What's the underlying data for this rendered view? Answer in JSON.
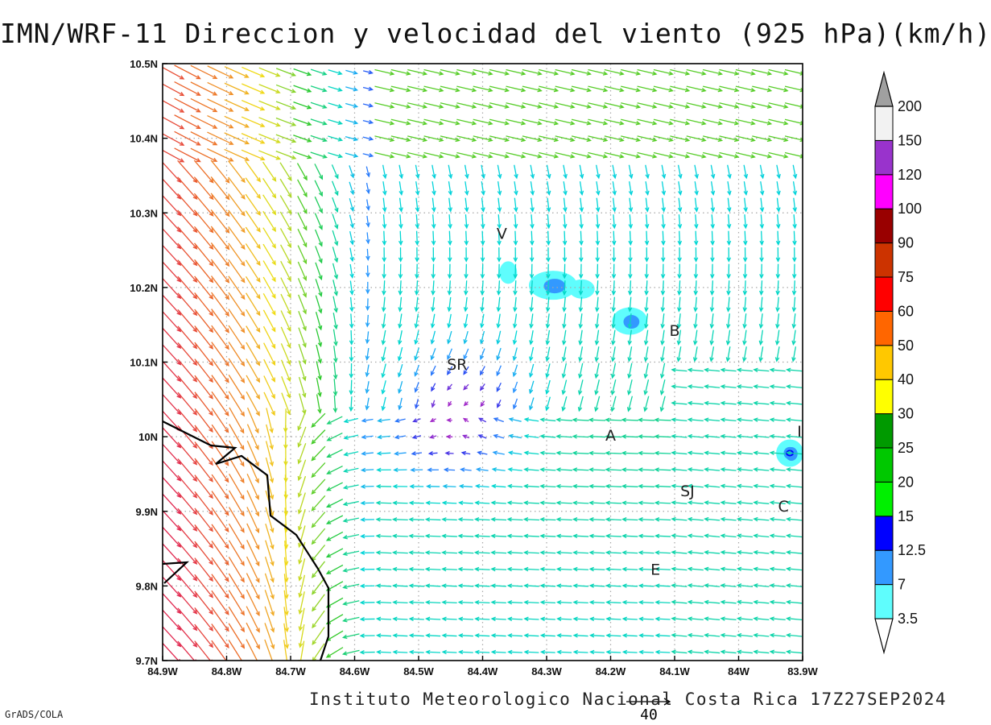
{
  "chart_data": {
    "type": "vector-field",
    "title": "IMN/WRF-11 Direccion y velocidad del viento (925 hPa)(km/h)",
    "x_ticks": [
      "84.9W",
      "84.8W",
      "84.7W",
      "84.6W",
      "84.5W",
      "84.4W",
      "84.3W",
      "84.2W",
      "84.1W",
      "84W",
      "83.9W"
    ],
    "y_ticks": [
      "9.7N",
      "9.8N",
      "9.9N",
      "10N",
      "10.1N",
      "10.2N",
      "10.3N",
      "10.4N",
      "10.5N"
    ],
    "xlim": [
      -84.9,
      -83.9
    ],
    "ylim": [
      9.7,
      10.5
    ],
    "grid": true,
    "reference_vector": "40",
    "colorbar": {
      "labels": [
        "3.5",
        "7",
        "12.5",
        "15",
        "20",
        "25",
        "30",
        "40",
        "50",
        "60",
        "75",
        "90",
        "100",
        "120",
        "150",
        "200"
      ],
      "colors": [
        "#5ffdfd",
        "#3399ff",
        "#0000ff",
        "#00f000",
        "#00c800",
        "#009a00",
        "#ffff00",
        "#ffc800",
        "#ff6600",
        "#ff0000",
        "#cc3300",
        "#990000",
        "#ff00ff",
        "#9933cc",
        "#f2f2f2",
        "#a0a0a0"
      ]
    },
    "places": [
      {
        "label": "V",
        "lon": -84.37,
        "lat": 10.265
      },
      {
        "label": "SR",
        "lon": -84.44,
        "lat": 10.09
      },
      {
        "label": "B",
        "lon": -84.1,
        "lat": 10.135
      },
      {
        "label": "A",
        "lon": -84.2,
        "lat": 9.995
      },
      {
        "label": "SJ",
        "lon": -84.08,
        "lat": 9.92
      },
      {
        "label": "C",
        "lon": -83.93,
        "lat": 9.9
      },
      {
        "label": "I",
        "lon": -83.905,
        "lat": 10.0
      },
      {
        "label": "E",
        "lon": -84.13,
        "lat": 9.815
      }
    ]
  },
  "footer": "Instituto Meteorologico Nacional Costa Rica 17Z27SEP2024",
  "credit": "GrADS/COLA"
}
